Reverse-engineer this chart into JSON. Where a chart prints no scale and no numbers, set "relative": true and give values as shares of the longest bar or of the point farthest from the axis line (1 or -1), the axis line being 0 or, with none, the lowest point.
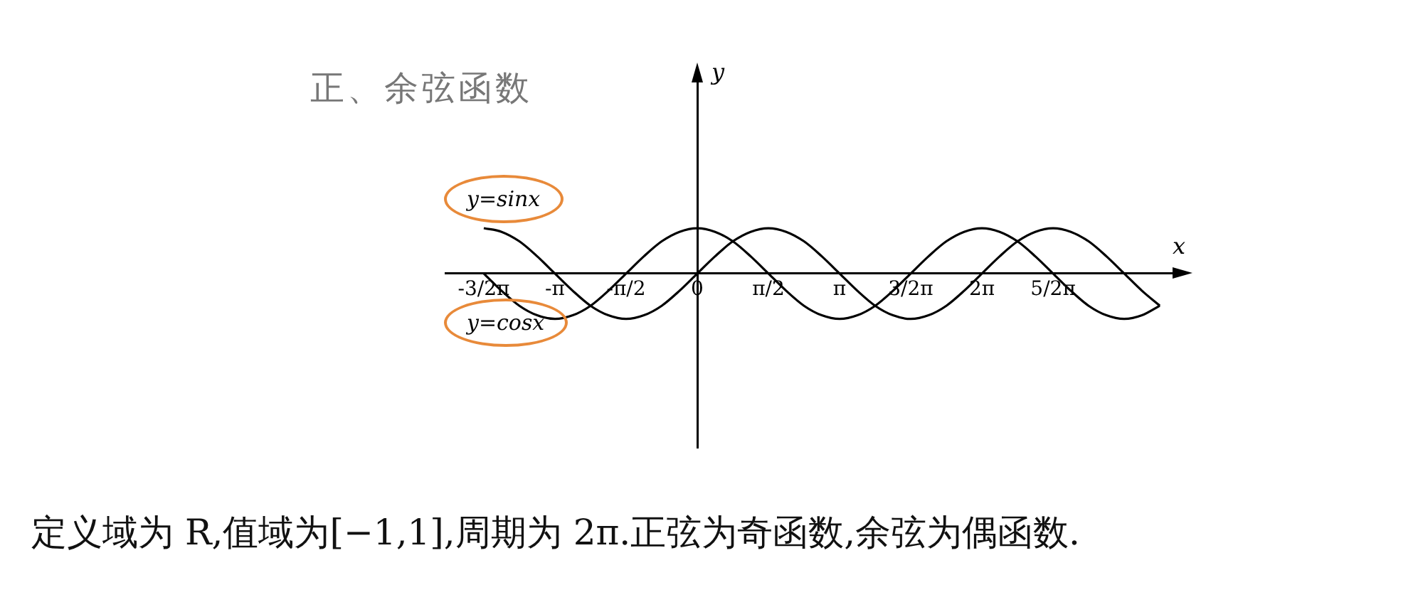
{
  "chart_data": {
    "type": "line",
    "title": "正、余弦函数",
    "relative": true,
    "legend": false,
    "marker": "none",
    "line_style": "solid",
    "xlim": [
      -5.56,
      10.68
    ],
    "xticks": [
      {
        "value": -4.712,
        "label": "-3/2π"
      },
      {
        "value": -3.142,
        "label": "-π"
      },
      {
        "value": -1.571,
        "label": "-π/2"
      },
      0,
      {
        "value": 1.571,
        "label": "π/2"
      },
      {
        "value": 3.142,
        "label": "π"
      },
      {
        "value": 4.712,
        "label": "3/2π"
      },
      {
        "value": 6.283,
        "label": "2π"
      },
      {
        "value": 7.854,
        "label": "5/2π"
      }
    ],
    "x": [
      -4.712,
      -4.32,
      -3.927,
      -3.534,
      -3.142,
      -2.749,
      -2.356,
      -1.963,
      -1.571,
      -1.178,
      -0.785,
      -0.393,
      0,
      0.393,
      0.785,
      1.178,
      1.571,
      1.963,
      2.356,
      2.749,
      3.142,
      3.534,
      3.927,
      4.32,
      4.712,
      5.105,
      5.498,
      5.89,
      6.283,
      6.676,
      7.069,
      7.461,
      7.854,
      8.247,
      8.639,
      9.032,
      9.425,
      9.817,
      10.21
    ],
    "series": [
      {
        "name": "y=sinx",
        "color": "#000000",
        "values": [
          1,
          0.92,
          0.71,
          0.38,
          0,
          -0.38,
          -0.71,
          -0.92,
          -1,
          -0.92,
          -0.71,
          -0.38,
          0,
          0.38,
          0.71,
          0.92,
          1,
          0.92,
          0.71,
          0.38,
          0,
          -0.38,
          -0.71,
          -0.92,
          -1,
          -0.92,
          -0.71,
          -0.38,
          0,
          0.38,
          0.71,
          0.92,
          1,
          0.92,
          0.71,
          0.38,
          0,
          -0.38,
          -0.71
        ]
      },
      {
        "name": "y=cosx",
        "color": "#000000",
        "values": [
          0,
          -0.38,
          -0.71,
          -0.92,
          -1,
          -0.92,
          -0.71,
          -0.38,
          0,
          0.38,
          0.71,
          0.92,
          1,
          0.92,
          0.71,
          0.38,
          0,
          -0.38,
          -0.71,
          -0.92,
          -1,
          -0.92,
          -0.71,
          -0.38,
          0,
          0.38,
          0.71,
          0.92,
          1,
          0.92,
          0.71,
          0.38,
          0,
          -0.38,
          -0.71,
          -0.92,
          -1,
          -0.92,
          -0.71
        ]
      }
    ],
    "annotations": [
      "y",
      "x",
      "定义域为 R,值域为[−1,1],周期为 2π.正弦为奇函数,余弦为偶函数."
    ]
  }
}
